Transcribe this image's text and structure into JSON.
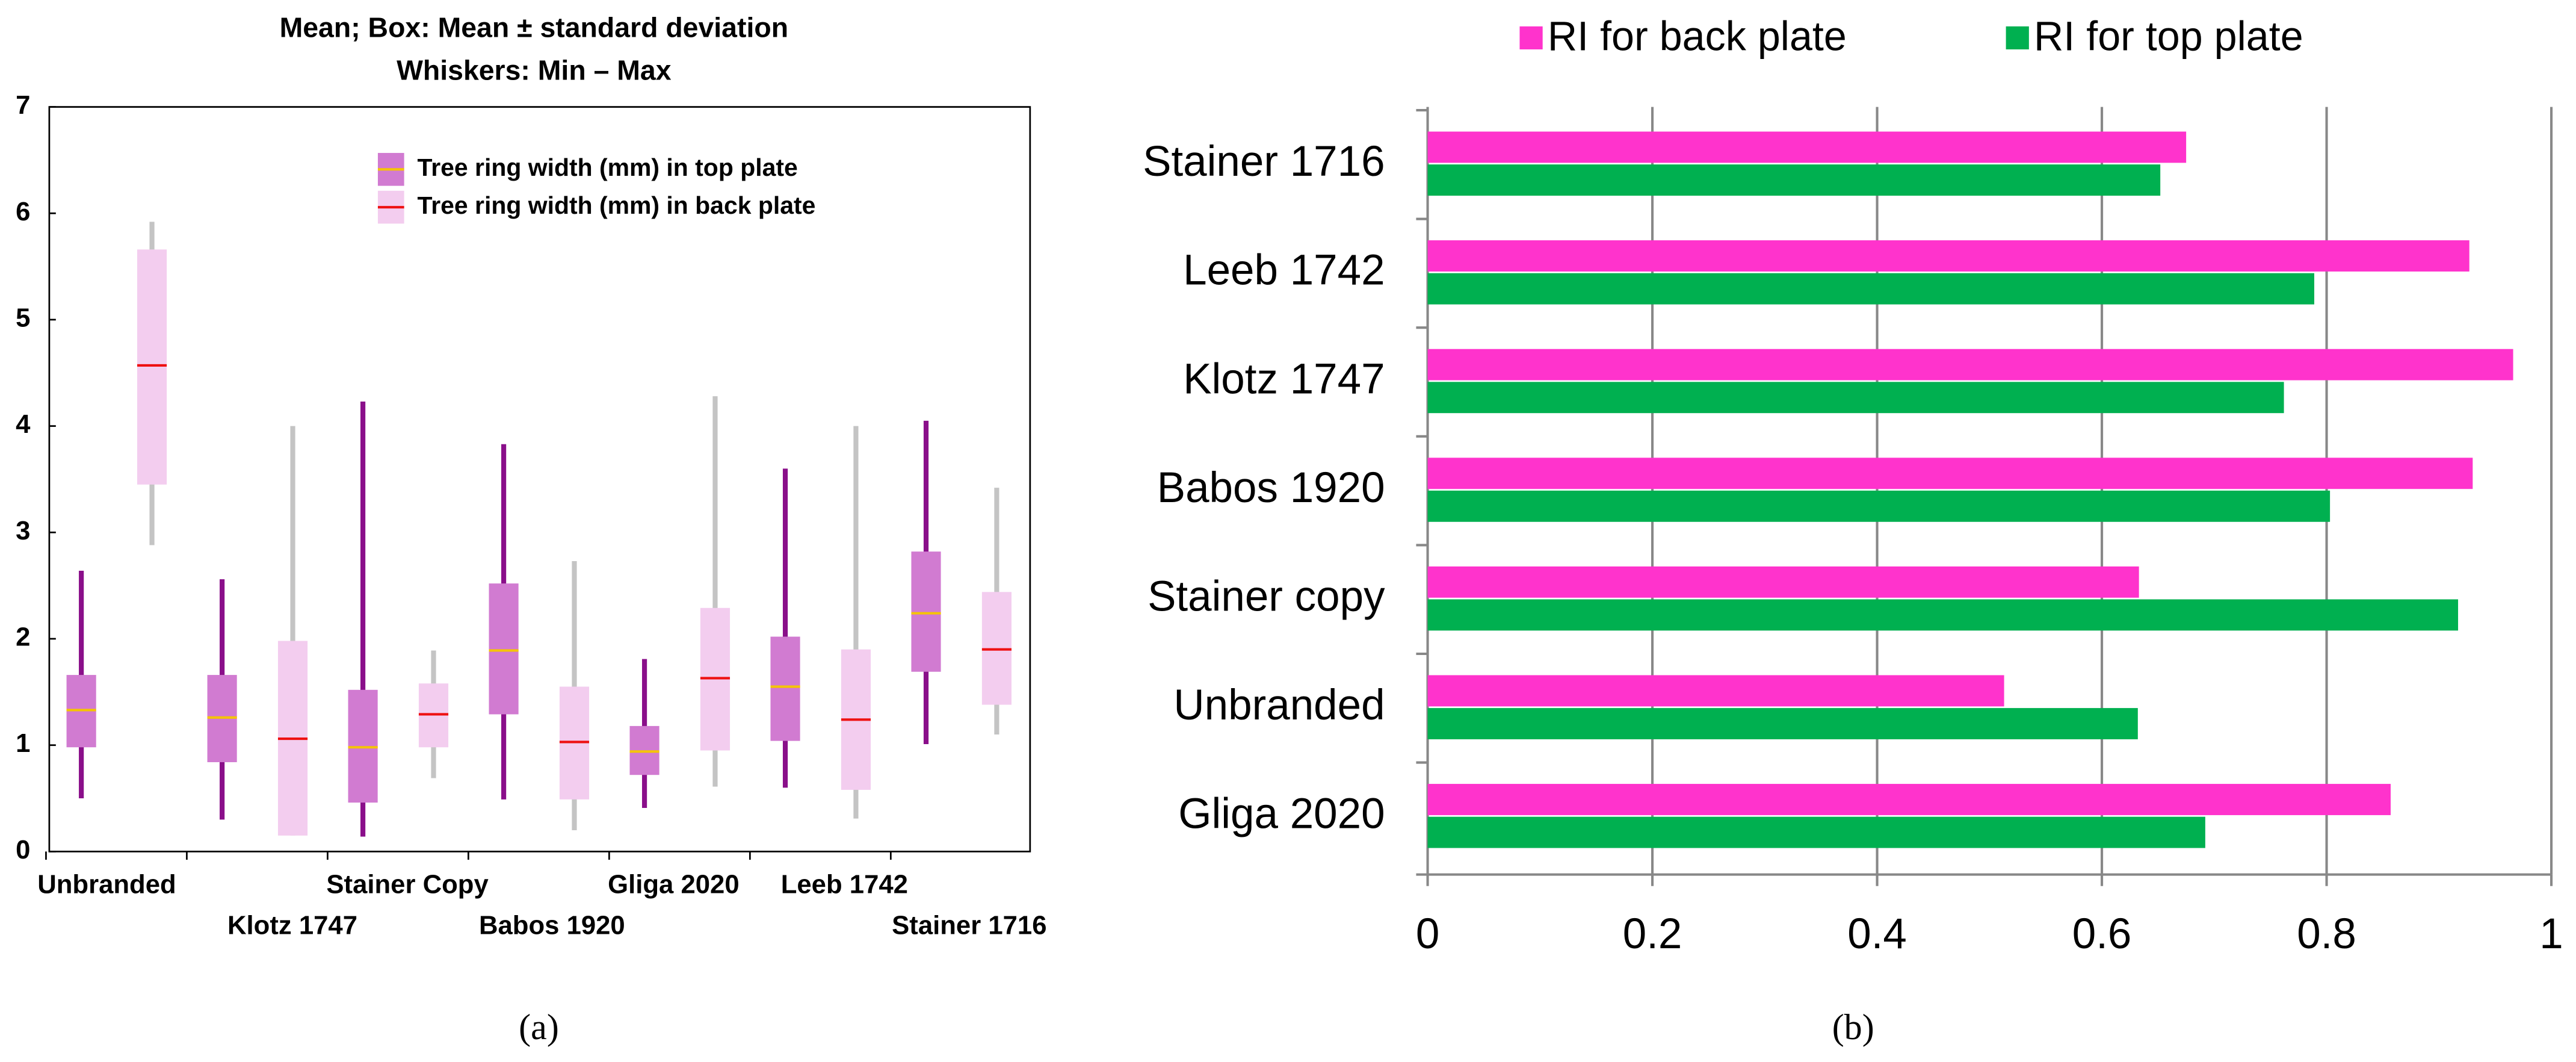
{
  "chart_data": [
    {
      "type": "box",
      "title": [
        "Mean; Box: Mean ± standard deviation",
        "Whiskers: Min – Max"
      ],
      "caption": "(a)",
      "categories": [
        "Unbranded",
        "Klotz 1747",
        "Stainer Copy",
        "Babos 1920",
        "Gliga 2020",
        "Leeb 1742",
        "Stainer 1716"
      ],
      "ylim": [
        0,
        7
      ],
      "yticks": [
        0,
        1,
        2,
        3,
        4,
        5,
        6,
        7
      ],
      "series": [
        {
          "name": "Tree ring width (mm) in top plate",
          "color": "#d17bd1",
          "whisker_color": "#8a0f8a",
          "mean_color": "#f5c400",
          "values": [
            1.33,
            1.26,
            0.98,
            1.89,
            0.94,
            1.55,
            2.24
          ],
          "low": [
            0.98,
            0.84,
            0.46,
            1.29,
            0.72,
            1.04,
            1.69
          ],
          "high": [
            1.66,
            1.66,
            1.52,
            2.52,
            1.18,
            2.02,
            2.82
          ],
          "min": [
            0.5,
            0.3,
            0.14,
            0.49,
            0.41,
            0.6,
            1.01
          ],
          "max": [
            2.64,
            2.56,
            4.23,
            3.83,
            1.81,
            3.6,
            4.05
          ]
        },
        {
          "name": "Tree ring width (mm) in back plate",
          "color": "#f3cdef",
          "whisker_color": "#c4c4c4",
          "mean_color": "#ee1111",
          "values": [
            4.57,
            1.06,
            1.29,
            1.03,
            1.63,
            1.24,
            1.9
          ],
          "low": [
            3.45,
            0.15,
            0.98,
            0.49,
            0.95,
            0.58,
            1.38
          ],
          "high": [
            5.66,
            1.98,
            1.58,
            1.55,
            2.29,
            1.9,
            2.44
          ],
          "min": [
            2.88,
            0.15,
            0.69,
            0.2,
            0.61,
            0.31,
            1.1
          ],
          "max": [
            5.92,
            4.0,
            1.89,
            2.73,
            4.28,
            4.0,
            3.42
          ]
        }
      ]
    },
    {
      "type": "hbar",
      "caption": "(b)",
      "categories": [
        "Stainer 1716",
        "Leeb 1742",
        "Klotz 1747",
        "Babos 1920",
        "Stainer copy",
        "Unbranded",
        "Gliga 2020"
      ],
      "xlim": [
        0,
        1
      ],
      "xticks": [
        0,
        0.2,
        0.4,
        0.6,
        0.8,
        1
      ],
      "grid": true,
      "series": [
        {
          "name": "RI for back plate",
          "color": "#ff33cc",
          "values": [
            0.675,
            0.927,
            0.966,
            0.93,
            0.633,
            0.513,
            0.857
          ]
        },
        {
          "name": "RI for top plate",
          "color": "#00b050",
          "values": [
            0.652,
            0.789,
            0.762,
            0.803,
            0.917,
            0.632,
            0.692
          ]
        }
      ]
    }
  ]
}
